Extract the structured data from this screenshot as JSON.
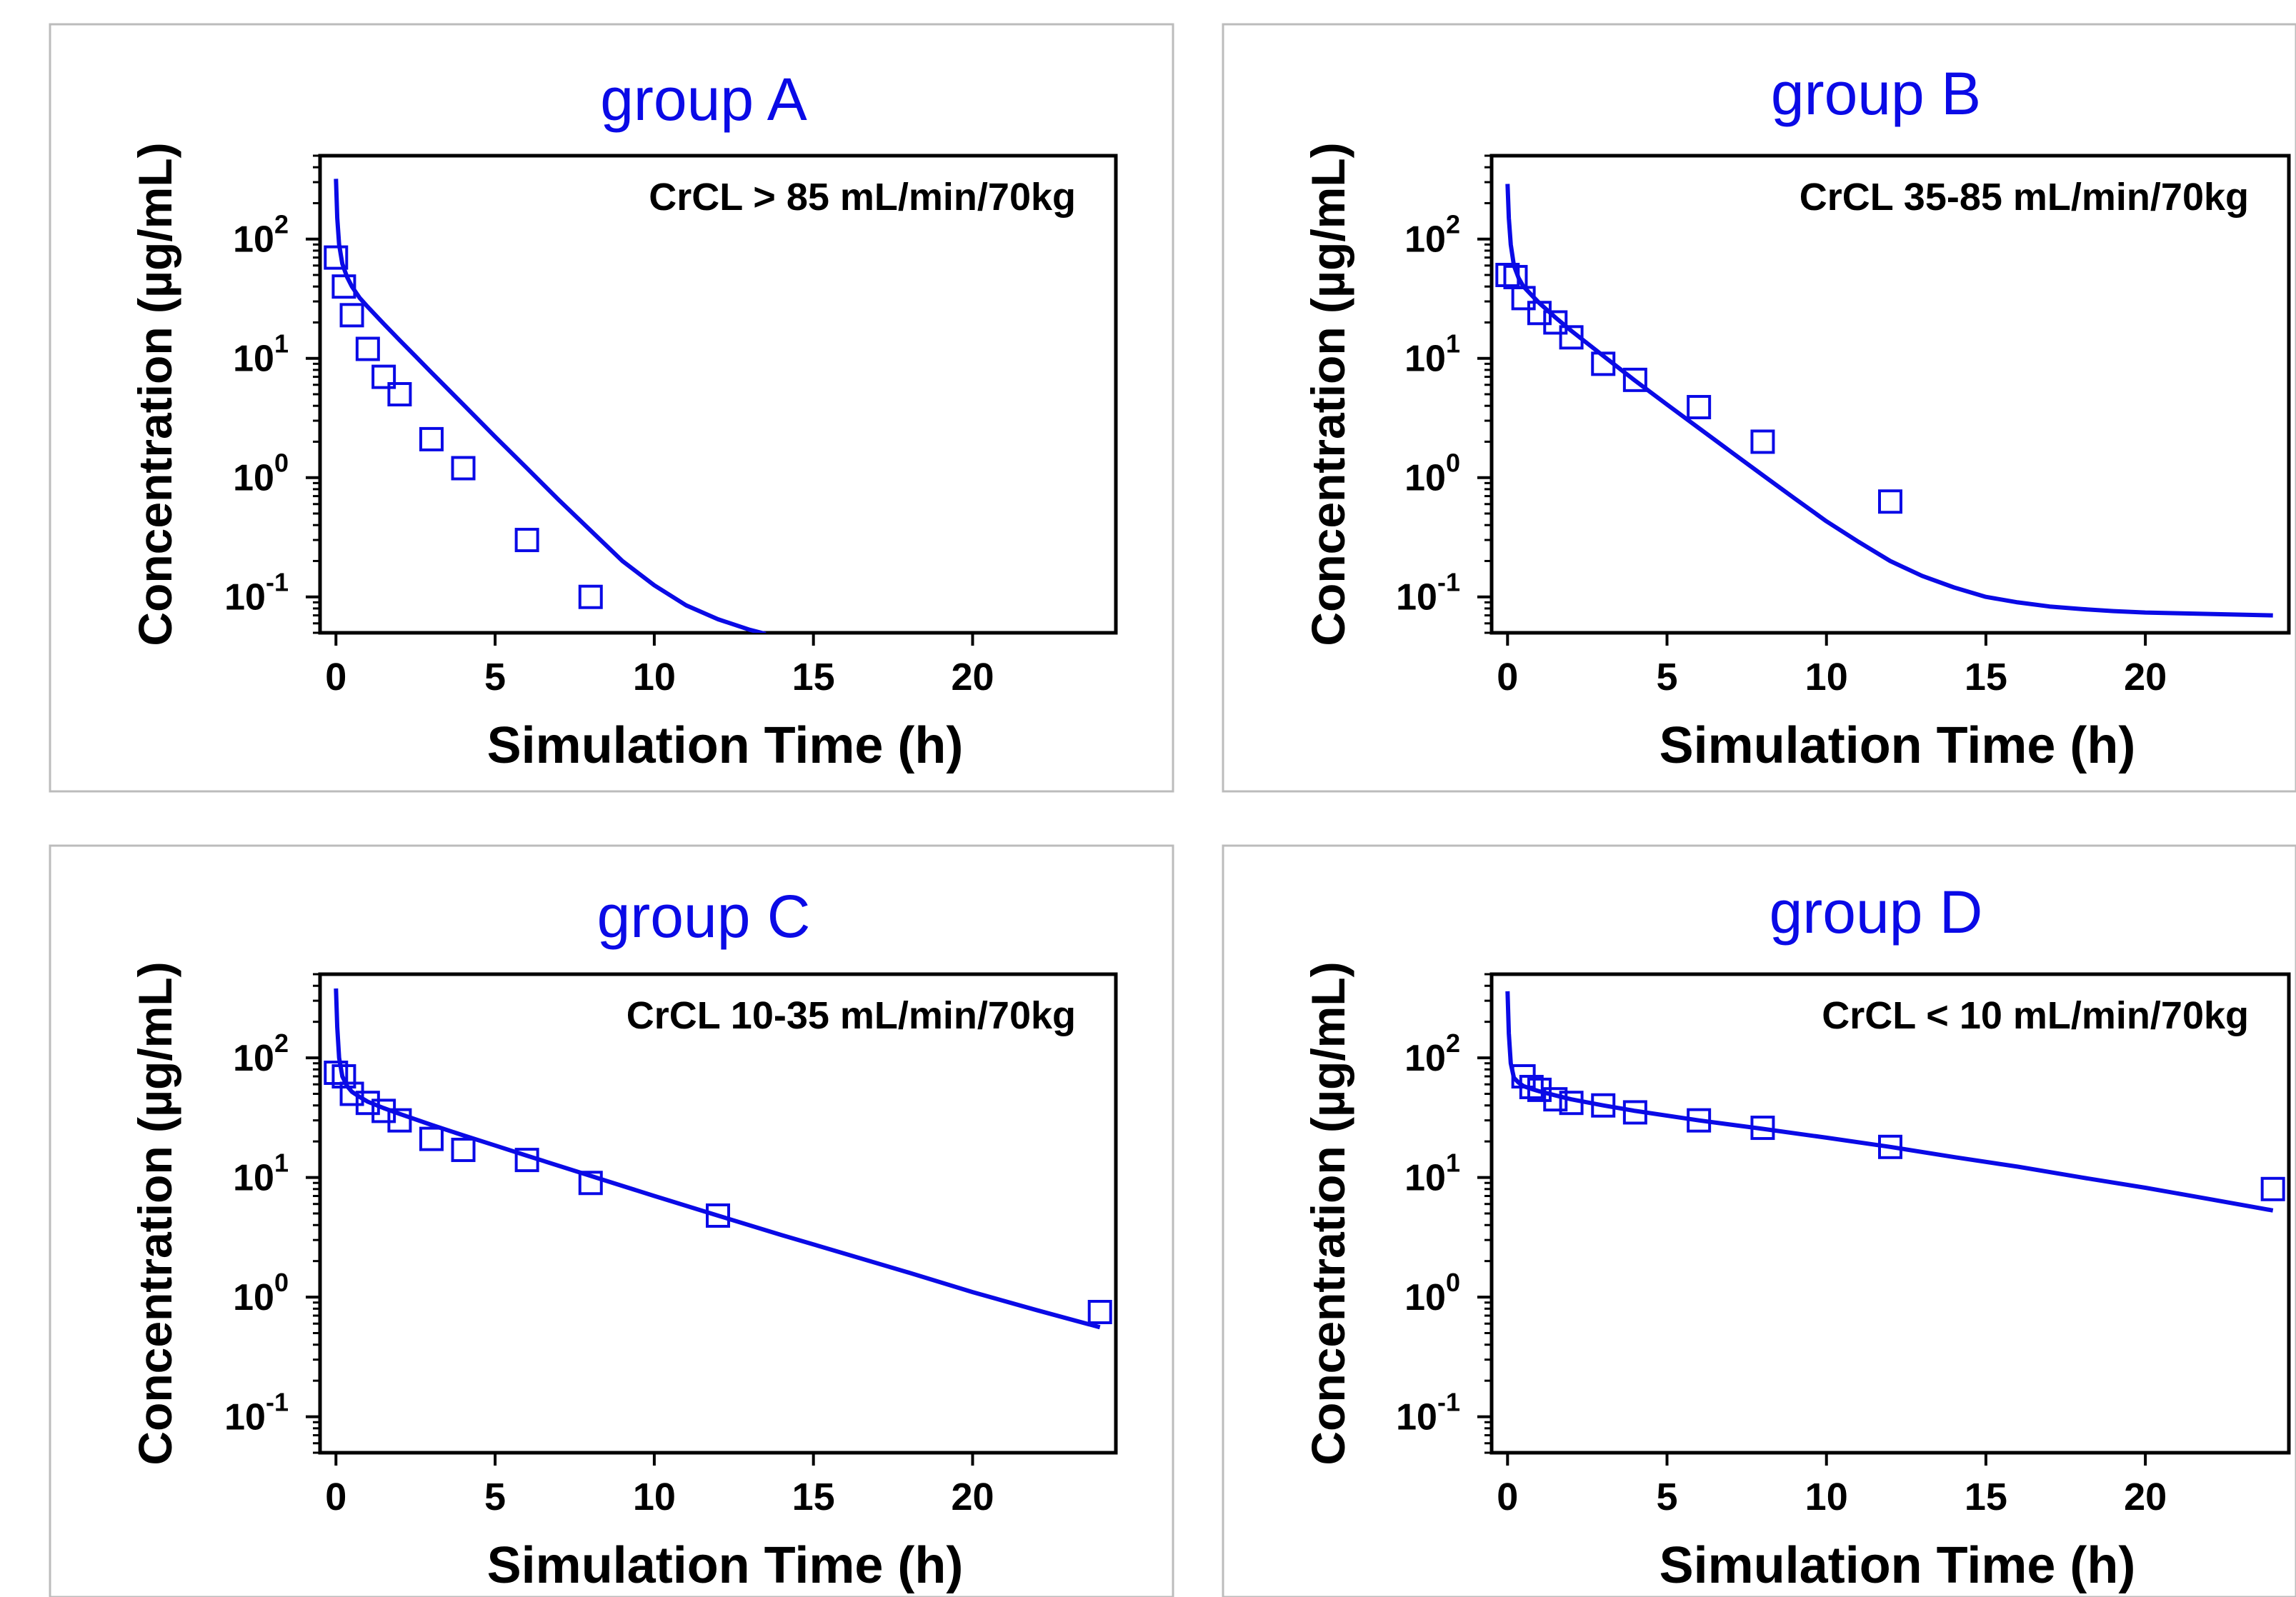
{
  "figure": {
    "background_color": "#ffffff",
    "panel_border_color": "#bcbcbc",
    "ink_color": "#000000",
    "series_color": "#0a0ae6"
  },
  "chart_data": [
    {
      "type": "line",
      "title": "group A",
      "annotation": "CrCL > 85 mL/min/70kg",
      "xlabel": "Simulation Time (h)",
      "ylabel": "Concentration (µg/mL)",
      "xlim": [
        -0.5,
        24.5
      ],
      "ylim": [
        0.05,
        500
      ],
      "y_scale": "log",
      "x_ticks": [
        0,
        5,
        10,
        15,
        20
      ],
      "y_ticks": [
        {
          "base": "10",
          "exp": "-1",
          "value": 0.1
        },
        {
          "base": "10",
          "exp": "0",
          "value": 1
        },
        {
          "base": "10",
          "exp": "1",
          "value": 10
        },
        {
          "base": "10",
          "exp": "2",
          "value": 100
        }
      ],
      "grid": false,
      "series": [
        {
          "kind": "line",
          "x": [
            0,
            0.04,
            0.1,
            0.2,
            0.35,
            0.5,
            0.75,
            1,
            1.5,
            2,
            2.5,
            3,
            4,
            5,
            6,
            7,
            8,
            9,
            10,
            11,
            12,
            13,
            13.5
          ],
          "y": [
            320,
            150,
            90,
            62,
            48,
            40,
            32,
            27,
            19.5,
            14.2,
            10.4,
            7.6,
            4.1,
            2.2,
            1.2,
            0.65,
            0.36,
            0.2,
            0.125,
            0.085,
            0.065,
            0.053,
            0.049
          ]
        },
        {
          "kind": "scatter",
          "marker": "open-square",
          "x": [
            0,
            0.25,
            0.5,
            1,
            1.5,
            2,
            3,
            4,
            6,
            8
          ],
          "y": [
            70,
            40,
            23,
            12,
            7,
            5,
            2.1,
            1.2,
            0.3,
            0.1
          ]
        }
      ]
    },
    {
      "type": "line",
      "title": "group B",
      "annotation": "CrCL 35-85 mL/min/70kg",
      "xlabel": "Simulation Time (h)",
      "ylabel": "Concentration (µg/mL)",
      "xlim": [
        -0.5,
        24.5
      ],
      "ylim": [
        0.05,
        500
      ],
      "y_scale": "log",
      "x_ticks": [
        0,
        5,
        10,
        15,
        20
      ],
      "y_ticks": [
        {
          "base": "10",
          "exp": "-1",
          "value": 0.1
        },
        {
          "base": "10",
          "exp": "0",
          "value": 1
        },
        {
          "base": "10",
          "exp": "1",
          "value": 10
        },
        {
          "base": "10",
          "exp": "2",
          "value": 100
        }
      ],
      "grid": false,
      "series": [
        {
          "kind": "line",
          "x": [
            0,
            0.04,
            0.1,
            0.2,
            0.35,
            0.5,
            0.75,
            1,
            1.5,
            2,
            3,
            4,
            5,
            6,
            7,
            8,
            9,
            10,
            11,
            12,
            13,
            14,
            15,
            16,
            17,
            18,
            19,
            20,
            21,
            22,
            23,
            24
          ],
          "y": [
            290,
            150,
            90,
            60,
            47,
            40,
            34,
            29,
            22,
            17,
            10.5,
            6.5,
            4.1,
            2.6,
            1.65,
            1.05,
            0.67,
            0.43,
            0.29,
            0.2,
            0.15,
            0.12,
            0.1,
            0.09,
            0.083,
            0.079,
            0.076,
            0.074,
            0.073,
            0.072,
            0.071,
            0.07
          ]
        },
        {
          "kind": "scatter",
          "marker": "open-square",
          "x": [
            0,
            0.25,
            0.5,
            1,
            1.5,
            2,
            3,
            4,
            6,
            8,
            12
          ],
          "y": [
            50,
            48,
            32,
            24,
            20,
            15,
            9,
            6.6,
            3.9,
            2,
            0.63
          ]
        }
      ]
    },
    {
      "type": "line",
      "title": "group C",
      "annotation": "CrCL 10-35 mL/min/70kg",
      "xlabel": "Simulation Time (h)",
      "ylabel": "Concentration (µg/mL)",
      "xlim": [
        -0.5,
        24.5
      ],
      "ylim": [
        0.05,
        500
      ],
      "y_scale": "log",
      "x_ticks": [
        0,
        5,
        10,
        15,
        20
      ],
      "y_ticks": [
        {
          "base": "10",
          "exp": "-1",
          "value": 0.1
        },
        {
          "base": "10",
          "exp": "0",
          "value": 1
        },
        {
          "base": "10",
          "exp": "1",
          "value": 10
        },
        {
          "base": "10",
          "exp": "2",
          "value": 100
        }
      ],
      "grid": false,
      "series": [
        {
          "kind": "line",
          "x": [
            0,
            0.04,
            0.1,
            0.2,
            0.35,
            0.5,
            0.75,
            1,
            1.5,
            2,
            3,
            4,
            5,
            6,
            8,
            10,
            12,
            14,
            16,
            18,
            20,
            22,
            23,
            24
          ],
          "y": [
            380,
            180,
            100,
            70,
            58,
            52,
            47,
            43,
            38,
            34,
            27.5,
            22.5,
            18.5,
            15.2,
            10.3,
            7,
            4.8,
            3.3,
            2.3,
            1.6,
            1.1,
            0.78,
            0.66,
            0.56
          ]
        },
        {
          "kind": "scatter",
          "marker": "open-square",
          "x": [
            0,
            0.25,
            0.5,
            1,
            1.5,
            2,
            3,
            4,
            6,
            8,
            12,
            24
          ],
          "y": [
            75,
            70,
            50,
            42,
            36,
            30,
            21,
            17,
            14,
            9,
            4.8,
            0.75
          ]
        }
      ]
    },
    {
      "type": "line",
      "title": "group D",
      "annotation": "CrCL < 10 mL/min/70kg",
      "xlabel": "Simulation Time (h)",
      "ylabel": "Concentration (µg/mL)",
      "xlim": [
        -0.5,
        24.5
      ],
      "ylim": [
        0.05,
        500
      ],
      "y_scale": "log",
      "x_ticks": [
        0,
        5,
        10,
        15,
        20
      ],
      "y_ticks": [
        {
          "base": "10",
          "exp": "-1",
          "value": 0.1
        },
        {
          "base": "10",
          "exp": "0",
          "value": 1
        },
        {
          "base": "10",
          "exp": "1",
          "value": 10
        },
        {
          "base": "10",
          "exp": "2",
          "value": 100
        }
      ],
      "grid": false,
      "series": [
        {
          "kind": "line",
          "x": [
            0,
            0.04,
            0.1,
            0.2,
            0.35,
            0.5,
            0.75,
            1,
            1.5,
            2,
            3,
            4,
            6,
            8,
            10,
            12,
            14,
            16,
            18,
            20,
            22,
            24
          ],
          "y": [
            360,
            160,
            90,
            68,
            62,
            58,
            55,
            52.5,
            48.5,
            45,
            40,
            36,
            30,
            25.5,
            21.5,
            18,
            14.8,
            12.3,
            10,
            8.2,
            6.6,
            5.3
          ]
        },
        {
          "kind": "scatter",
          "marker": "open-square",
          "x": [
            0.5,
            0.75,
            1,
            1.5,
            2,
            3,
            4,
            6,
            8,
            12,
            24
          ],
          "y": [
            70,
            57,
            54,
            45,
            42,
            40,
            35,
            30,
            26,
            18,
            8
          ]
        }
      ]
    }
  ]
}
